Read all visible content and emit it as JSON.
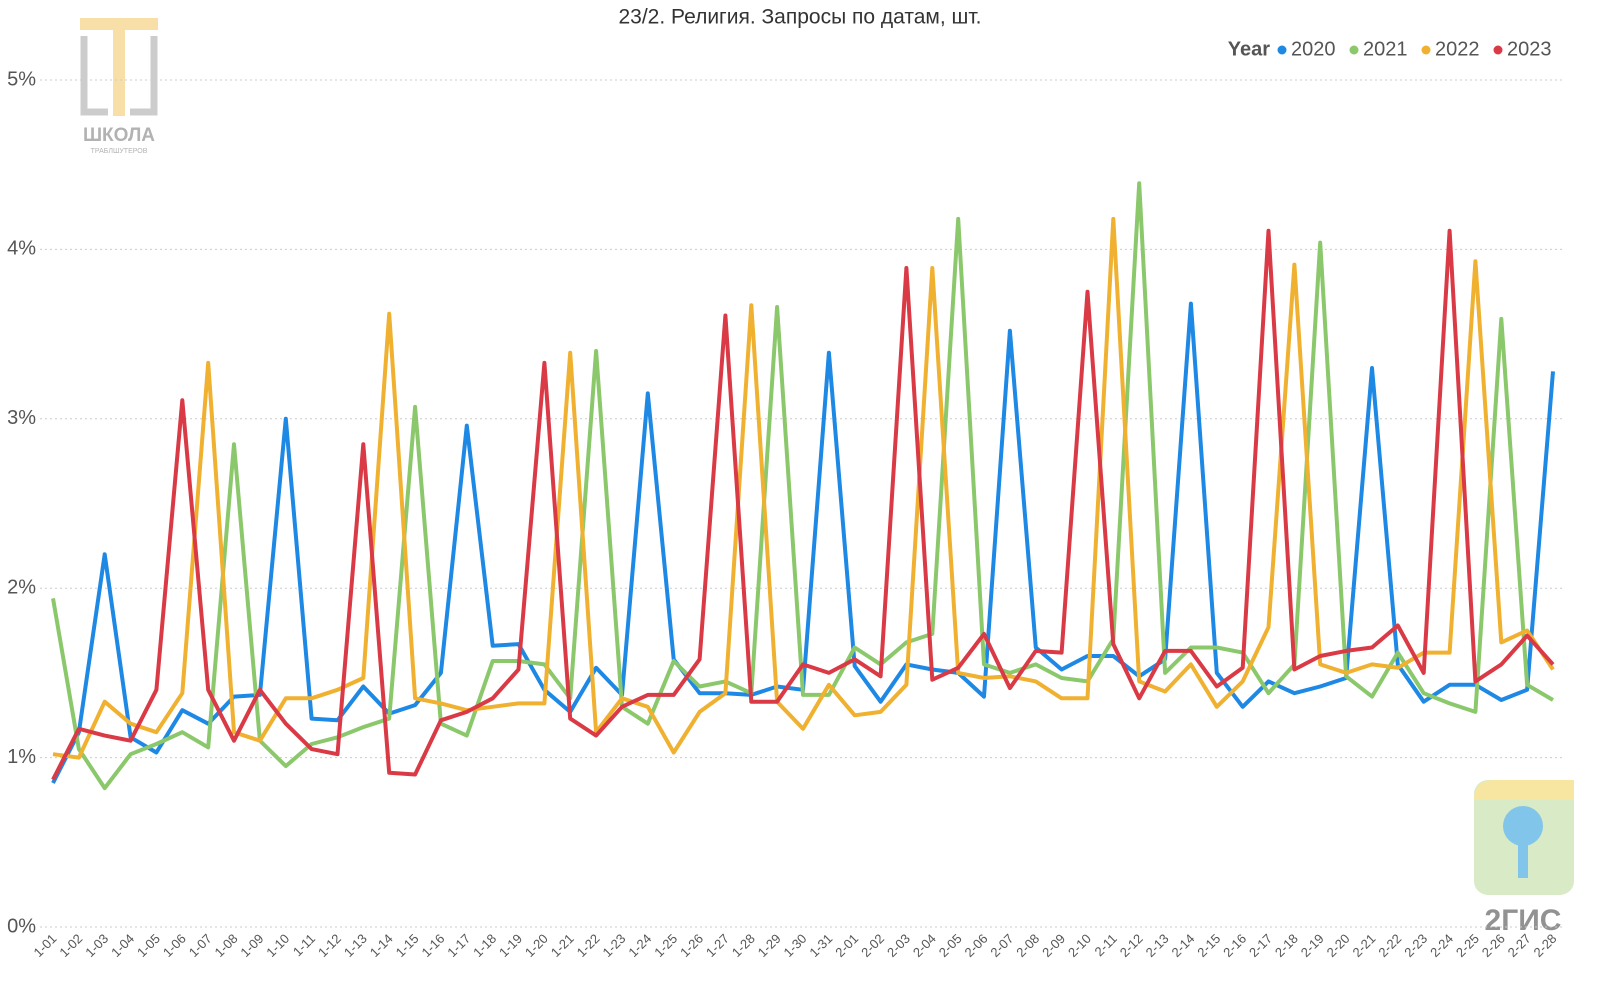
{
  "chart_data": {
    "type": "line",
    "title": "23/2. Религия. Запросы по датам, шт.",
    "legend_title": "Year",
    "legend": "top-right",
    "grid": true,
    "categories": [
      "1-01",
      "1-02",
      "1-03",
      "1-04",
      "1-05",
      "1-06",
      "1-07",
      "1-08",
      "1-09",
      "1-10",
      "1-11",
      "1-12",
      "1-13",
      "1-14",
      "1-15",
      "1-16",
      "1-17",
      "1-18",
      "1-19",
      "1-20",
      "1-21",
      "1-22",
      "1-23",
      "1-24",
      "1-25",
      "1-26",
      "1-27",
      "1-28",
      "1-29",
      "1-30",
      "1-31",
      "2-01",
      "2-02",
      "2-03",
      "2-04",
      "2-05",
      "2-06",
      "2-07",
      "2-08",
      "2-09",
      "2-10",
      "2-11",
      "2-12",
      "2-13",
      "2-14",
      "2-15",
      "2-16",
      "2-17",
      "2-18",
      "2-19",
      "2-20",
      "2-21",
      "2-22",
      "2-23",
      "2-24",
      "2-25",
      "2-26",
      "2-27",
      "2-28"
    ],
    "ylim": [
      0,
      5.3
    ],
    "yticks": [
      {
        "value": 0,
        "label": "0%"
      },
      {
        "value": 1,
        "label": "1%"
      },
      {
        "value": 2,
        "label": "2%"
      },
      {
        "value": 3,
        "label": "3%"
      },
      {
        "value": 4,
        "label": "4%"
      },
      {
        "value": 5,
        "label": "5%"
      }
    ],
    "series": [
      {
        "name": "2020",
        "color": "#1e88e5",
        "values": [
          0.85,
          1.15,
          2.2,
          1.12,
          1.03,
          1.28,
          1.2,
          1.36,
          1.37,
          3.0,
          1.23,
          1.22,
          1.42,
          1.26,
          1.31,
          1.5,
          2.96,
          1.66,
          1.67,
          1.4,
          1.27,
          1.53,
          1.37,
          3.15,
          1.58,
          1.38,
          1.38,
          1.37,
          1.42,
          1.4,
          3.39,
          1.54,
          1.33,
          1.55,
          1.52,
          1.5,
          1.36,
          3.52,
          1.65,
          1.52,
          1.6,
          1.6,
          1.48,
          1.58,
          3.68,
          1.5,
          1.3,
          1.45,
          1.38,
          1.42,
          1.47,
          3.3,
          1.55,
          1.33,
          1.43,
          1.43,
          1.34,
          1.4,
          3.28
        ]
      },
      {
        "name": "2021",
        "color": "#8bc86b",
        "values": [
          1.94,
          1.05,
          0.82,
          1.02,
          1.08,
          1.15,
          1.06,
          2.85,
          1.1,
          0.95,
          1.08,
          1.12,
          1.18,
          1.23,
          3.07,
          1.2,
          1.13,
          1.57,
          1.57,
          1.55,
          1.35,
          3.4,
          1.3,
          1.2,
          1.57,
          1.42,
          1.45,
          1.38,
          3.66,
          1.37,
          1.37,
          1.65,
          1.55,
          1.68,
          1.73,
          4.18,
          1.55,
          1.5,
          1.55,
          1.47,
          1.45,
          1.7,
          4.39,
          1.5,
          1.65,
          1.65,
          1.62,
          1.38,
          1.55,
          4.04,
          1.48,
          1.36,
          1.62,
          1.38,
          1.32,
          1.27,
          3.59,
          1.43,
          1.34
        ]
      },
      {
        "name": "2022",
        "color": "#f0b030",
        "values": [
          1.02,
          1.0,
          1.33,
          1.2,
          1.15,
          1.38,
          3.33,
          1.15,
          1.1,
          1.35,
          1.35,
          1.4,
          1.47,
          3.62,
          1.35,
          1.32,
          1.28,
          1.3,
          1.32,
          1.32,
          3.39,
          1.15,
          1.35,
          1.3,
          1.03,
          1.27,
          1.38,
          3.67,
          1.33,
          1.17,
          1.43,
          1.25,
          1.27,
          1.43,
          3.89,
          1.5,
          1.47,
          1.48,
          1.45,
          1.35,
          1.35,
          4.18,
          1.45,
          1.39,
          1.55,
          1.3,
          1.45,
          1.77,
          3.91,
          1.55,
          1.5,
          1.55,
          1.53,
          1.62,
          1.62,
          3.93,
          1.68,
          1.75,
          1.52
        ]
      },
      {
        "name": "2023",
        "color": "#d93a45",
        "values": [
          0.87,
          1.17,
          1.13,
          1.1,
          1.4,
          3.11,
          1.4,
          1.1,
          1.4,
          1.2,
          1.05,
          1.02,
          2.85,
          0.91,
          0.9,
          1.22,
          1.27,
          1.35,
          1.52,
          3.33,
          1.23,
          1.13,
          1.3,
          1.37,
          1.37,
          1.58,
          3.61,
          1.33,
          1.33,
          1.55,
          1.5,
          1.58,
          1.48,
          3.89,
          1.46,
          1.53,
          1.73,
          1.41,
          1.63,
          1.62,
          3.75,
          1.67,
          1.35,
          1.63,
          1.63,
          1.42,
          1.53,
          4.11,
          1.52,
          1.6,
          1.63,
          1.65,
          1.78,
          1.5,
          4.11,
          1.45,
          1.55,
          1.72,
          1.55
        ]
      }
    ]
  },
  "logos": {
    "school": "ШКОЛА",
    "school_sub": "ТРАБЛШУТЕРОВ",
    "brand": "2ГИС"
  }
}
